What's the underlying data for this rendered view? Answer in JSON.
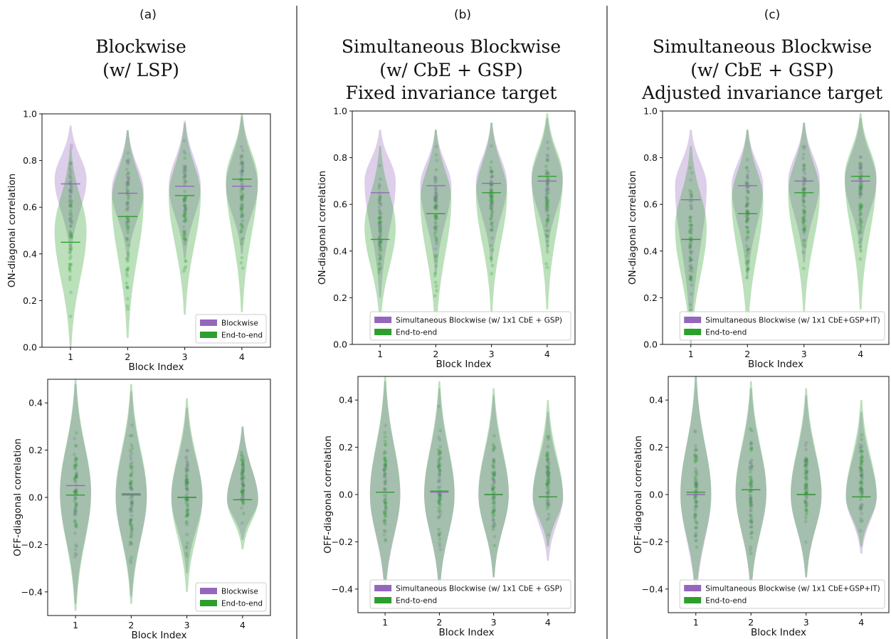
{
  "panels": [
    {
      "tag": "(a)",
      "title_lines": [
        "Blockwise",
        "(w/ LSP)"
      ]
    },
    {
      "tag": "(b)",
      "title_lines": [
        "Simultaneous Blockwise",
        "(w/ CbE + GSP)",
        "Fixed invariance target"
      ]
    },
    {
      "tag": "(c)",
      "title_lines": [
        "Simultaneous Blockwise",
        "(w/ CbE + GSP)",
        "Adjusted invariance target"
      ]
    }
  ],
  "colors": {
    "method": "#9467bd",
    "end_to_end": "#2ca02c",
    "method_fill": "#d9cbe9",
    "e2e_fill": "#b7e0b0"
  },
  "chart_data": [
    {
      "type": "violin",
      "panel": "(a)",
      "name": "a-on",
      "xlabel": "Block Index",
      "ylabel": "ON-diagonal correlation",
      "categories": [
        "1",
        "2",
        "3",
        "4"
      ],
      "ylim": [
        0.0,
        1.0
      ],
      "yticks": [
        "0.0",
        "0.2",
        "0.4",
        "0.6",
        "0.8",
        "1.0"
      ],
      "ytick_values": [
        0.0,
        0.2,
        0.4,
        0.6,
        0.8,
        1.0
      ],
      "legend": [
        "Blockwise",
        "End-to-end"
      ],
      "legend_position": "lower right",
      "series": [
        {
          "name": "Blockwise",
          "medians": [
            0.7,
            0.66,
            0.69,
            0.69
          ],
          "ranges": [
            [
              0.4,
              0.95
            ],
            [
              0.38,
              0.93
            ],
            [
              0.38,
              0.97
            ],
            [
              0.4,
              0.99
            ]
          ],
          "modes": [
            0.72,
            0.67,
            0.69,
            0.69
          ]
        },
        {
          "name": "End-to-end",
          "medians": [
            0.45,
            0.56,
            0.65,
            0.72
          ],
          "ranges": [
            [
              0.0,
              0.85
            ],
            [
              0.04,
              0.93
            ],
            [
              0.14,
              0.96
            ],
            [
              0.15,
              1.0
            ]
          ],
          "modes": [
            0.5,
            0.63,
            0.65,
            0.72
          ]
        }
      ]
    },
    {
      "type": "violin",
      "panel": "(a)",
      "name": "a-off",
      "xlabel": "Block Index",
      "ylabel": "OFF-diagonal correlation",
      "categories": [
        "1",
        "2",
        "3",
        "4"
      ],
      "ylim": [
        -0.5,
        0.5
      ],
      "yticks": [
        "−0.4",
        "−0.2",
        "0.0",
        "0.2",
        "0.4"
      ],
      "ytick_values": [
        -0.4,
        -0.2,
        0.0,
        0.2,
        0.4
      ],
      "legend": [
        "Blockwise",
        "End-to-end"
      ],
      "legend_position": "lower right",
      "series": [
        {
          "name": "Blockwise",
          "medians": [
            0.05,
            0.01,
            0.0,
            -0.01
          ],
          "ranges": [
            [
              -0.45,
              0.48
            ],
            [
              -0.42,
              0.45
            ],
            [
              -0.32,
              0.38
            ],
            [
              -0.18,
              0.3
            ]
          ],
          "modes": [
            0.02,
            0.0,
            0.0,
            -0.01
          ]
        },
        {
          "name": "End-to-end",
          "medians": [
            0.01,
            0.015,
            0.0,
            -0.01
          ],
          "ranges": [
            [
              -0.48,
              0.5
            ],
            [
              -0.45,
              0.48
            ],
            [
              -0.4,
              0.42
            ],
            [
              -0.22,
              0.3
            ]
          ],
          "modes": [
            0.02,
            0.01,
            0.0,
            -0.01
          ]
        }
      ]
    },
    {
      "type": "violin",
      "panel": "(b)",
      "name": "b-on",
      "xlabel": "Block Index",
      "ylabel": "ON-diagonal correlation",
      "categories": [
        "1",
        "2",
        "3",
        "4"
      ],
      "ylim": [
        0.0,
        1.0
      ],
      "yticks": [
        "0.0",
        "0.2",
        "0.4",
        "0.6",
        "0.8",
        "1.0"
      ],
      "ytick_values": [
        0.0,
        0.2,
        0.4,
        0.6,
        0.8,
        1.0
      ],
      "legend": [
        "Simultaneous Blockwise (w/ 1x1 CbE + GSP)",
        "End-to-end"
      ],
      "legend_position": "lower right",
      "series": [
        {
          "name": "Simultaneous Blockwise (w/ 1x1 CbE + GSP)",
          "medians": [
            0.65,
            0.68,
            0.69,
            0.7
          ],
          "ranges": [
            [
              0.2,
              0.92
            ],
            [
              0.3,
              0.92
            ],
            [
              0.35,
              0.95
            ],
            [
              0.4,
              0.97
            ]
          ],
          "modes": [
            0.7,
            0.68,
            0.69,
            0.7
          ]
        },
        {
          "name": "End-to-end",
          "medians": [
            0.45,
            0.56,
            0.65,
            0.72
          ],
          "ranges": [
            [
              0.1,
              0.85
            ],
            [
              0.06,
              0.92
            ],
            [
              0.14,
              0.95
            ],
            [
              0.15,
              0.99
            ]
          ],
          "modes": [
            0.5,
            0.62,
            0.65,
            0.72
          ]
        }
      ]
    },
    {
      "type": "violin",
      "panel": "(b)",
      "name": "b-off",
      "xlabel": "Block Index",
      "ylabel": "OFF-diagonal correlation",
      "categories": [
        "1",
        "2",
        "3",
        "4"
      ],
      "ylim": [
        -0.5,
        0.5
      ],
      "yticks": [
        "−0.4",
        "−0.2",
        "0.0",
        "0.2",
        "0.4"
      ],
      "ytick_values": [
        -0.4,
        -0.2,
        0.0,
        0.2,
        0.4
      ],
      "legend": [
        "Simultaneous Blockwise (w/ 1x1 CbE + GSP)",
        "End-to-end"
      ],
      "legend_position": "lower right",
      "series": [
        {
          "name": "Simultaneous Blockwise (w/ 1x1 CbE + GSP)",
          "medians": [
            0.01,
            0.01,
            0.0,
            -0.01
          ],
          "ranges": [
            [
              -0.42,
              0.48
            ],
            [
              -0.4,
              0.45
            ],
            [
              -0.35,
              0.42
            ],
            [
              -0.28,
              0.35
            ]
          ],
          "modes": [
            0.0,
            0.0,
            0.0,
            -0.01
          ]
        },
        {
          "name": "End-to-end",
          "medians": [
            0.01,
            0.015,
            0.0,
            -0.01
          ],
          "ranges": [
            [
              -0.4,
              0.5
            ],
            [
              -0.4,
              0.48
            ],
            [
              -0.35,
              0.45
            ],
            [
              -0.22,
              0.4
            ]
          ],
          "modes": [
            0.0,
            0.0,
            0.0,
            -0.01
          ]
        }
      ]
    },
    {
      "type": "violin",
      "panel": "(c)",
      "name": "c-on",
      "xlabel": "Block Index",
      "ylabel": "ON-diagonal correlation",
      "categories": [
        "1",
        "2",
        "3",
        "4"
      ],
      "ylim": [
        0.0,
        1.0
      ],
      "yticks": [
        "0.0",
        "0.2",
        "0.4",
        "0.6",
        "0.8",
        "1.0"
      ],
      "ytick_values": [
        0.0,
        0.2,
        0.4,
        0.6,
        0.8,
        1.0
      ],
      "legend": [
        "Simultaneous Blockwise (w/ 1x1 CbE+GSP+IT)",
        "End-to-end"
      ],
      "legend_position": "lower right",
      "series": [
        {
          "name": "Simultaneous Blockwise (w/ 1x1 CbE+GSP+IT)",
          "medians": [
            0.62,
            0.68,
            0.7,
            0.7
          ],
          "ranges": [
            [
              0.05,
              0.92
            ],
            [
              0.28,
              0.92
            ],
            [
              0.35,
              0.95
            ],
            [
              0.4,
              0.97
            ]
          ],
          "modes": [
            0.68,
            0.68,
            0.7,
            0.7
          ]
        },
        {
          "name": "End-to-end",
          "medians": [
            0.45,
            0.56,
            0.65,
            0.72
          ],
          "ranges": [
            [
              0.0,
              0.85
            ],
            [
              0.06,
              0.92
            ],
            [
              0.14,
              0.95
            ],
            [
              0.15,
              0.99
            ]
          ],
          "modes": [
            0.5,
            0.62,
            0.65,
            0.72
          ]
        }
      ]
    },
    {
      "type": "violin",
      "panel": "(c)",
      "name": "c-off",
      "xlabel": "Block Index",
      "ylabel": "OFF-diagonal correlation",
      "categories": [
        "1",
        "2",
        "3",
        "4"
      ],
      "ylim": [
        -0.5,
        0.5
      ],
      "yticks": [
        "−0.4",
        "−0.2",
        "0.0",
        "0.2",
        "0.4"
      ],
      "ytick_values": [
        -0.4,
        -0.2,
        0.0,
        0.2,
        0.4
      ],
      "legend": [
        "Simultaneous Blockwise (w/ 1x1 CbE+GSP+IT)",
        "End-to-end"
      ],
      "legend_position": "lower right",
      "series": [
        {
          "name": "Simultaneous Blockwise (w/ 1x1 CbE+GSP+IT)",
          "medians": [
            0.0,
            0.02,
            0.0,
            -0.01
          ],
          "ranges": [
            [
              -0.45,
              0.5
            ],
            [
              -0.4,
              0.45
            ],
            [
              -0.35,
              0.42
            ],
            [
              -0.25,
              0.35
            ]
          ],
          "modes": [
            0.0,
            0.01,
            0.0,
            -0.01
          ]
        },
        {
          "name": "End-to-end",
          "medians": [
            0.01,
            0.02,
            0.0,
            -0.01
          ],
          "ranges": [
            [
              -0.42,
              0.5
            ],
            [
              -0.4,
              0.48
            ],
            [
              -0.35,
              0.45
            ],
            [
              -0.22,
              0.4
            ]
          ],
          "modes": [
            0.0,
            0.01,
            0.0,
            -0.01
          ]
        }
      ]
    }
  ]
}
